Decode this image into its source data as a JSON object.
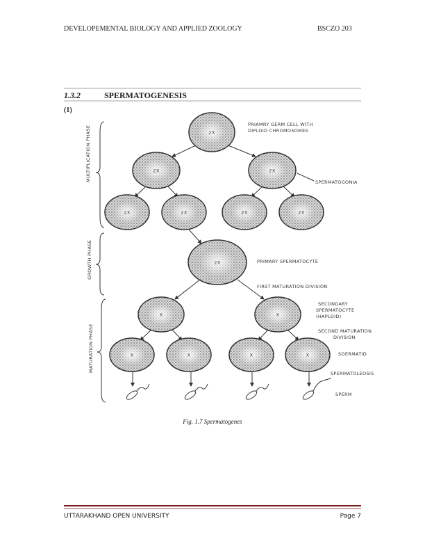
{
  "header": {
    "title": "DEVELOPEMENTAL BIOLOGY AND APPLIED ZOOLOGY",
    "code": "BSCZO 203"
  },
  "section": {
    "number": "1.3.2",
    "title": "SPERMATOGENESIS"
  },
  "figure_number": "(1)",
  "diagram": {
    "phases": [
      "MULTIPLICATION PHASE",
      "GROWTH PHASE",
      "MATURATION PHASE"
    ],
    "cells": [
      "2X",
      "2X",
      "2X",
      "2X",
      "2X",
      "2X",
      "2X",
      "2X",
      "X",
      "X",
      "X",
      "X",
      "X",
      "X"
    ],
    "labels": [
      "PRIAMRY GERM CELL WITH",
      "DIPLOID CHROMOSOMES",
      "SPERMATOGONIA",
      "PRIMARY SPERMATOCYTE",
      "FIRST MATURATION DIVISION",
      "SECONDARY",
      "SPERMATOCYTE",
      "(HAPLOID)",
      "SECOND MATURATION",
      "DIVISION",
      "SOERMATID",
      "SPERMATOLEOSIS",
      "SPERM"
    ]
  },
  "caption": "Fig. 1.7 Spermatogenes",
  "footer": {
    "university": "UTTARAKHAND OPEN UNIVERSITY",
    "page": "Page 7"
  }
}
